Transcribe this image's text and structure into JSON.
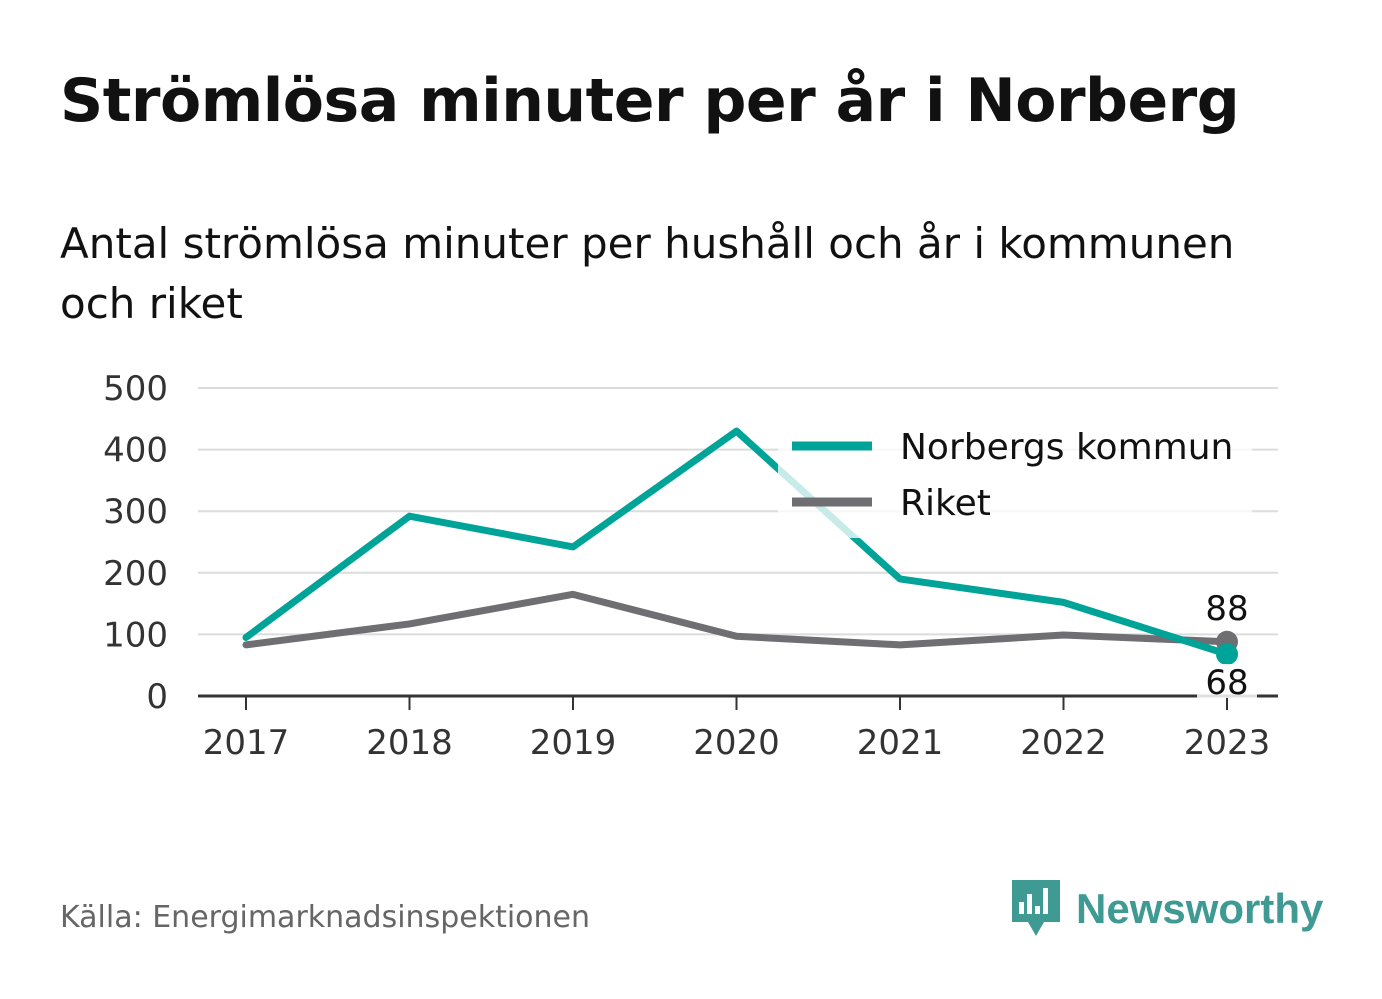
{
  "title": "Strömlösa minuter per år i Norberg",
  "subtitle": "Antal strömlösa minuter per hushåll och år i kommunen och riket",
  "source": "Källa: Energimarknadsinspektionen",
  "brand": {
    "name": "Newsworthy",
    "icon": "newsworthy-logo-icon",
    "color": "#3f9a93"
  },
  "chart_data": {
    "type": "line",
    "categories": [
      "2017",
      "2018",
      "2019",
      "2020",
      "2021",
      "2022",
      "2023"
    ],
    "series": [
      {
        "name": "Norbergs kommun",
        "color": "#00a398",
        "values": [
          95,
          292,
          242,
          430,
          190,
          152,
          68
        ]
      },
      {
        "name": "Riket",
        "color": "#6e6e73",
        "values": [
          83,
          117,
          165,
          97,
          83,
          99,
          88
        ]
      }
    ],
    "yticks": [
      0,
      100,
      200,
      300,
      400,
      500
    ],
    "ylim": [
      0,
      500
    ],
    "grid": true,
    "legend": "top-right",
    "end_labels": [
      "68",
      "88"
    ]
  }
}
